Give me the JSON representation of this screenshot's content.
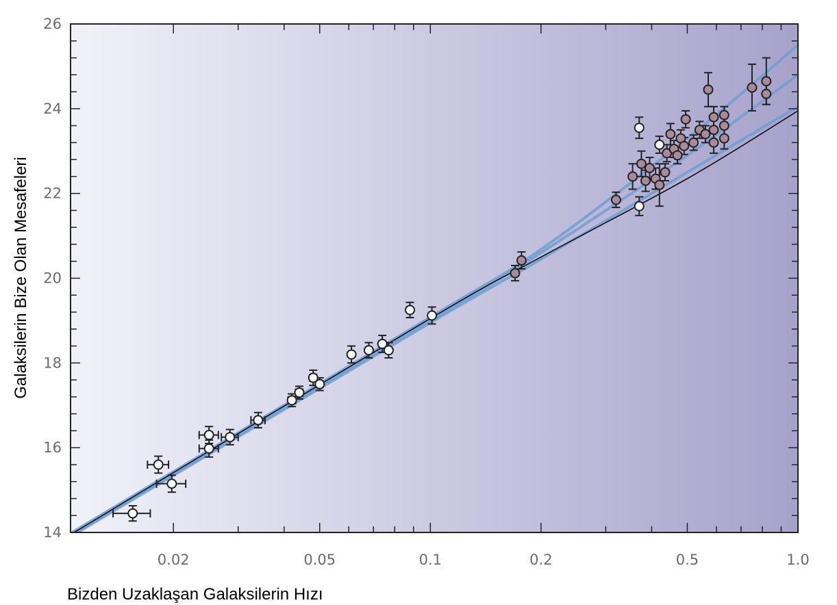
{
  "chart_data": {
    "type": "scatter",
    "title": "",
    "xlabel": "Bizden Uzaklaşan Galaksilerin Hızı",
    "ylabel": "Galaksilerin Bize Olan Mesafeleri",
    "x_scale": "log",
    "xlim": [
      0.0105,
      1.0
    ],
    "ylim": [
      14,
      26
    ],
    "x_ticks": [
      {
        "value": 0.02,
        "label": "0.02"
      },
      {
        "value": 0.05,
        "label": "0.05"
      },
      {
        "value": 0.1,
        "label": "0.1"
      },
      {
        "value": 0.2,
        "label": "0.2"
      },
      {
        "value": 0.5,
        "label": "0.5"
      },
      {
        "value": 1.0,
        "label": "1.0"
      }
    ],
    "y_ticks": [
      {
        "value": 14,
        "label": "14"
      },
      {
        "value": 16,
        "label": "16"
      },
      {
        "value": 18,
        "label": "18"
      },
      {
        "value": 20,
        "label": "20"
      },
      {
        "value": 22,
        "label": "22"
      },
      {
        "value": 24,
        "label": "24"
      },
      {
        "value": 26,
        "label": "26"
      }
    ],
    "grid": false,
    "legend": "none",
    "colors": {
      "background_left": "#f1f2f9",
      "background_right": "#a7a2cb",
      "open_marker_fill": "#ffffff",
      "filled_marker_fill": "#a88a98",
      "marker_edge": "#222222",
      "fit_line_main": "#111111",
      "fit_line_blue": "#6f9fd2"
    },
    "series": [
      {
        "marker": "open",
        "points": [
          {
            "x": 0.0155,
            "y": 14.45,
            "xerr": 0.0018,
            "yerr": 0.18
          },
          {
            "x": 0.0182,
            "y": 15.6,
            "xerr": 0.0012,
            "yerr": 0.2
          },
          {
            "x": 0.0198,
            "y": 15.15,
            "xerr": 0.0018,
            "yerr": 0.2
          },
          {
            "x": 0.025,
            "y": 16.3,
            "xerr": 0.0015,
            "yerr": 0.2
          },
          {
            "x": 0.025,
            "y": 15.98,
            "xerr": 0.0015,
            "yerr": 0.2
          },
          {
            "x": 0.0285,
            "y": 16.25,
            "xerr": 0.0015,
            "yerr": 0.18
          },
          {
            "x": 0.034,
            "y": 16.65,
            "xerr": 0.0015,
            "yerr": 0.18
          },
          {
            "x": 0.042,
            "y": 17.12,
            "xerr": 0.001,
            "yerr": 0.15
          },
          {
            "x": 0.044,
            "y": 17.3,
            "xerr": 0.001,
            "yerr": 0.15
          },
          {
            "x": 0.048,
            "y": 17.65,
            "xerr": 0.001,
            "yerr": 0.18
          },
          {
            "x": 0.05,
            "y": 17.5,
            "xerr": 0.001,
            "yerr": 0.15
          },
          {
            "x": 0.061,
            "y": 18.2,
            "xerr": 0.001,
            "yerr": 0.2
          },
          {
            "x": 0.068,
            "y": 18.3,
            "xerr": 0.001,
            "yerr": 0.18
          },
          {
            "x": 0.074,
            "y": 18.45,
            "xerr": 0.001,
            "yerr": 0.2
          },
          {
            "x": 0.077,
            "y": 18.3,
            "xerr": 0.001,
            "yerr": 0.18
          },
          {
            "x": 0.088,
            "y": 19.25,
            "xerr": 0.001,
            "yerr": 0.18
          },
          {
            "x": 0.101,
            "y": 19.12,
            "xerr": 0.001,
            "yerr": 0.2
          },
          {
            "x": 0.37,
            "y": 23.55,
            "xerr": 0,
            "yerr": 0.25
          },
          {
            "x": 0.37,
            "y": 21.7,
            "xerr": 0,
            "yerr": 0.22
          },
          {
            "x": 0.42,
            "y": 23.15,
            "xerr": 0,
            "yerr": 0.2
          }
        ]
      },
      {
        "marker": "filled",
        "points": [
          {
            "x": 0.17,
            "y": 20.12,
            "xerr": 0,
            "yerr": 0.18
          },
          {
            "x": 0.177,
            "y": 20.42,
            "xerr": 0,
            "yerr": 0.2
          },
          {
            "x": 0.32,
            "y": 21.85,
            "xerr": 0,
            "yerr": 0.18
          },
          {
            "x": 0.355,
            "y": 22.4,
            "xerr": 0,
            "yerr": 0.3
          },
          {
            "x": 0.375,
            "y": 22.7,
            "xerr": 0,
            "yerr": 0.3
          },
          {
            "x": 0.385,
            "y": 22.3,
            "xerr": 0,
            "yerr": 0.25
          },
          {
            "x": 0.395,
            "y": 22.6,
            "xerr": 0,
            "yerr": 0.25
          },
          {
            "x": 0.41,
            "y": 22.35,
            "xerr": 0,
            "yerr": 0.25
          },
          {
            "x": 0.42,
            "y": 22.2,
            "xerr": 0,
            "yerr": 0.5
          },
          {
            "x": 0.435,
            "y": 22.5,
            "xerr": 0,
            "yerr": 0.2
          },
          {
            "x": 0.44,
            "y": 22.95,
            "xerr": 0,
            "yerr": 0.2
          },
          {
            "x": 0.45,
            "y": 23.4,
            "xerr": 0,
            "yerr": 0.25
          },
          {
            "x": 0.46,
            "y": 23.05,
            "xerr": 0,
            "yerr": 0.2
          },
          {
            "x": 0.47,
            "y": 22.9,
            "xerr": 0,
            "yerr": 0.2
          },
          {
            "x": 0.48,
            "y": 23.3,
            "xerr": 0,
            "yerr": 0.2
          },
          {
            "x": 0.49,
            "y": 23.12,
            "xerr": 0,
            "yerr": 0.2
          },
          {
            "x": 0.495,
            "y": 23.75,
            "xerr": 0,
            "yerr": 0.2
          },
          {
            "x": 0.52,
            "y": 23.2,
            "xerr": 0,
            "yerr": 0.18
          },
          {
            "x": 0.54,
            "y": 23.5,
            "xerr": 0,
            "yerr": 0.2
          },
          {
            "x": 0.56,
            "y": 23.4,
            "xerr": 0,
            "yerr": 0.2
          },
          {
            "x": 0.57,
            "y": 24.45,
            "xerr": 0,
            "yerr": 0.4
          },
          {
            "x": 0.59,
            "y": 23.8,
            "xerr": 0,
            "yerr": 0.25
          },
          {
            "x": 0.59,
            "y": 23.5,
            "xerr": 0,
            "yerr": 0.25
          },
          {
            "x": 0.59,
            "y": 23.2,
            "xerr": 0,
            "yerr": 0.25
          },
          {
            "x": 0.63,
            "y": 23.85,
            "xerr": 0,
            "yerr": 0.2
          },
          {
            "x": 0.63,
            "y": 23.6,
            "xerr": 0,
            "yerr": 0.25
          },
          {
            "x": 0.63,
            "y": 23.3,
            "xerr": 0,
            "yerr": 0.25
          },
          {
            "x": 0.75,
            "y": 24.5,
            "xerr": 0,
            "yerr": 0.55
          },
          {
            "x": 0.82,
            "y": 24.65,
            "xerr": 0,
            "yerr": 0.55
          },
          {
            "x": 0.82,
            "y": 24.35,
            "xerr": 0,
            "yerr": 0.25
          }
        ]
      }
    ],
    "fit_lines": [
      {
        "style": "blue",
        "points": [
          [
            0.0105,
            13.93
          ],
          [
            0.1,
            19.0
          ],
          [
            0.2,
            20.6
          ],
          [
            0.5,
            22.9
          ],
          [
            1.0,
            24.8
          ]
        ]
      },
      {
        "style": "blue",
        "points": [
          [
            0.0105,
            13.98
          ],
          [
            0.1,
            19.08
          ],
          [
            0.2,
            20.68
          ],
          [
            0.5,
            23.3
          ],
          [
            1.0,
            25.5
          ]
        ]
      },
      {
        "style": "blue",
        "points": [
          [
            0.0105,
            13.9
          ],
          [
            0.1,
            18.95
          ],
          [
            0.2,
            20.45
          ],
          [
            0.5,
            22.5
          ],
          [
            1.0,
            24.05
          ]
        ]
      },
      {
        "style": "main",
        "points": [
          [
            0.0105,
            13.95
          ],
          [
            0.1,
            19.05
          ],
          [
            0.2,
            20.5
          ],
          [
            0.5,
            22.35
          ],
          [
            1.0,
            23.95
          ]
        ]
      }
    ]
  }
}
